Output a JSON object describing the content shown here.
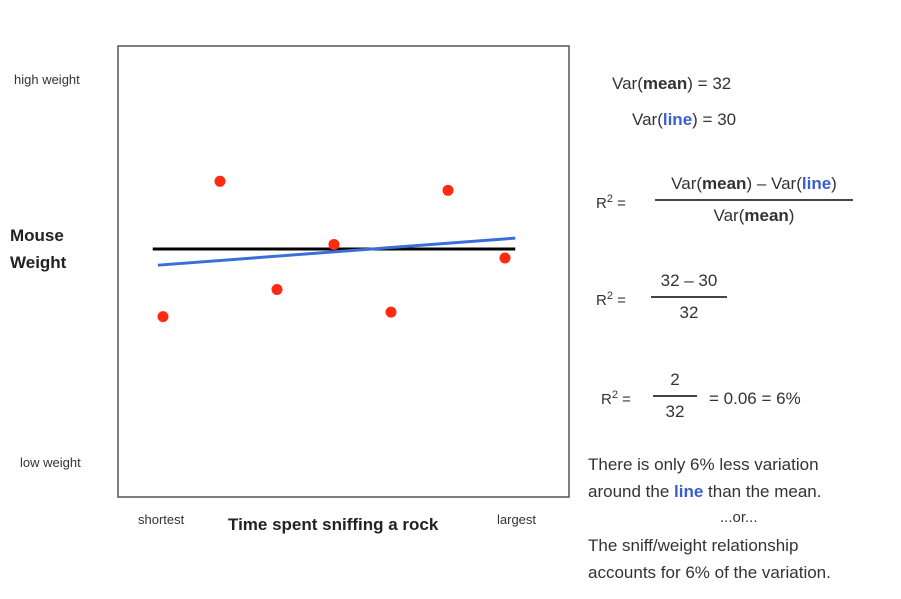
{
  "chart_data": {
    "type": "scatter",
    "title": "",
    "xlabel": "Time spent sniffing a rock",
    "ylabel": "Mouse Weight",
    "x_tick_labels": {
      "low": "shortest",
      "high": "largest"
    },
    "y_tick_labels": {
      "low": "low weight",
      "high": "high weight"
    },
    "xlim": [
      0,
      8
    ],
    "ylim": [
      0,
      10
    ],
    "grid": false,
    "points": {
      "x": [
        1,
        2,
        3,
        4,
        5,
        6,
        7
      ],
      "y": [
        4.0,
        7.0,
        4.6,
        5.6,
        4.1,
        6.8,
        5.3
      ],
      "color": "#ff2a10"
    },
    "mean_line": {
      "x": [
        0.82,
        7.18
      ],
      "y": [
        5.5,
        5.5
      ],
      "color": "#000000"
    },
    "fit_line": {
      "x": [
        0.91,
        7.18
      ],
      "y": [
        5.14,
        5.74
      ],
      "color": "#3a6fd8"
    }
  },
  "equations": {
    "var_prefix": "Var(",
    "mean_word": "mean",
    "line_word": "line",
    "close_paren": ")",
    "var_mean_value": " = 32",
    "var_line_value": " = 30",
    "r2_label": "R",
    "r2_sup": "2",
    "equals": " =",
    "minus": " – ",
    "num2": "32 – 30",
    "den2": "32",
    "num3": "2",
    "den3": "32",
    "result3": "= 0.06 = 6%"
  },
  "notes": {
    "line1_a": "There is only 6% less variation",
    "line2_a": "around the ",
    "line2_b": "line",
    "line2_c": " than the mean.",
    "or": "...or...",
    "line3": "The sniff/weight relationship",
    "line4": "accounts for 6% of the variation."
  }
}
